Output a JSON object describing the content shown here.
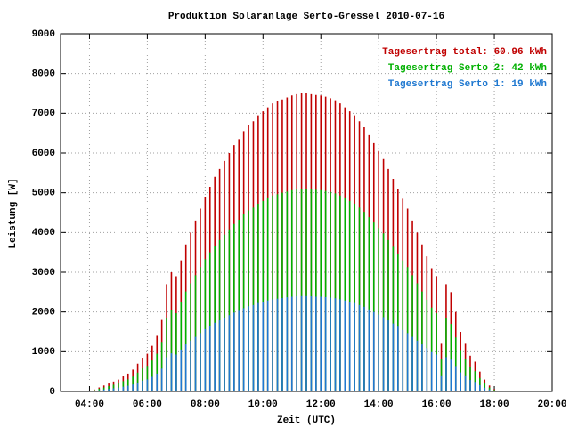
{
  "chart_data": {
    "type": "impulse",
    "title": "Produktion Solaranlage Serto-Gressel 2010-07-16",
    "x_label": "Zeit (UTC)",
    "y_label": "Leistung [W]",
    "x": [
      250,
      260,
      270,
      280,
      290,
      300,
      310,
      320,
      330,
      340,
      350,
      360,
      370,
      380,
      390,
      400,
      410,
      420,
      430,
      440,
      450,
      460,
      470,
      480,
      490,
      500,
      510,
      520,
      530,
      540,
      550,
      560,
      570,
      580,
      590,
      600,
      610,
      620,
      630,
      640,
      650,
      660,
      670,
      680,
      690,
      700,
      710,
      720,
      730,
      740,
      750,
      760,
      770,
      780,
      790,
      800,
      810,
      820,
      830,
      840,
      850,
      860,
      870,
      880,
      890,
      900,
      910,
      920,
      930,
      940,
      950,
      960,
      970,
      980,
      990,
      1000,
      1010,
      1020,
      1030,
      1040,
      1050,
      1060,
      1070,
      1080,
      1090
    ],
    "series": [
      {
        "name": "Tagesertrag total: 60.96 kWh",
        "color": "#c00000",
        "values": [
          50,
          100,
          150,
          200,
          250,
          300,
          380,
          450,
          550,
          700,
          850,
          950,
          1150,
          1400,
          1800,
          2700,
          3000,
          2900,
          3300,
          3700,
          4000,
          4300,
          4600,
          4900,
          5150,
          5400,
          5600,
          5800,
          6000,
          6200,
          6350,
          6550,
          6700,
          6800,
          6950,
          7050,
          7150,
          7250,
          7300,
          7350,
          7400,
          7450,
          7480,
          7500,
          7500,
          7480,
          7460,
          7450,
          7420,
          7380,
          7330,
          7250,
          7150,
          7050,
          6950,
          6800,
          6650,
          6450,
          6250,
          6050,
          5850,
          5600,
          5350,
          5100,
          4850,
          4600,
          4300,
          4000,
          3700,
          3400,
          3100,
          2900,
          1200,
          2700,
          2500,
          2000,
          1500,
          1200,
          900,
          750,
          500,
          300,
          150,
          60,
          20
        ]
      },
      {
        "name": "Tagesertrag Serto 2: 42 kWh",
        "color": "#00b000",
        "values": [
          35,
          70,
          100,
          135,
          170,
          205,
          260,
          305,
          375,
          475,
          580,
          645,
          780,
          950,
          1225,
          1840,
          2040,
          1970,
          2245,
          2515,
          2720,
          2925,
          3130,
          3330,
          3500,
          3670,
          3810,
          3945,
          4080,
          4215,
          4320,
          4455,
          4555,
          4625,
          4725,
          4795,
          4860,
          4930,
          4965,
          5000,
          5030,
          5065,
          5085,
          5100,
          5100,
          5085,
          5075,
          5065,
          5045,
          5020,
          4985,
          4930,
          4860,
          4795,
          4725,
          4625,
          4520,
          4385,
          4250,
          4115,
          3980,
          3810,
          3640,
          3470,
          3300,
          3130,
          2925,
          2720,
          2515,
          2310,
          2110,
          1970,
          815,
          1835,
          1700,
          1360,
          1020,
          815,
          610,
          510,
          340,
          205,
          100,
          40,
          15
        ]
      },
      {
        "name": "Tagesertrag Serto 1: 19 kWh",
        "color": "#1f78d0",
        "values": [
          15,
          30,
          50,
          65,
          80,
          95,
          120,
          145,
          175,
          225,
          270,
          305,
          370,
          450,
          575,
          860,
          960,
          930,
          1055,
          1185,
          1280,
          1375,
          1470,
          1570,
          1650,
          1730,
          1790,
          1855,
          1920,
          1985,
          2030,
          2095,
          2145,
          2175,
          2225,
          2255,
          2290,
          2320,
          2335,
          2350,
          2370,
          2385,
          2395,
          2400,
          2400,
          2395,
          2385,
          2385,
          2375,
          2360,
          2345,
          2320,
          2290,
          2255,
          2225,
          2175,
          2130,
          2065,
          2000,
          1935,
          1870,
          1790,
          1710,
          1630,
          1550,
          1470,
          1375,
          1280,
          1185,
          1090,
          990,
          930,
          385,
          865,
          800,
          640,
          480,
          385,
          290,
          240,
          160,
          95,
          50,
          20,
          5
        ]
      }
    ],
    "xlim": [
      180,
      1200
    ],
    "xticks": [
      {
        "value": 240,
        "label": "04:00"
      },
      {
        "value": 360,
        "label": "06:00"
      },
      {
        "value": 480,
        "label": "08:00"
      },
      {
        "value": 600,
        "label": "10:00"
      },
      {
        "value": 720,
        "label": "12:00"
      },
      {
        "value": 840,
        "label": "14:00"
      },
      {
        "value": 960,
        "label": "16:00"
      },
      {
        "value": 1080,
        "label": "18:00"
      },
      {
        "value": 1200,
        "label": "20:00"
      }
    ],
    "ylim": [
      0,
      9000
    ],
    "yticks": [
      0,
      1000,
      2000,
      3000,
      4000,
      5000,
      6000,
      7000,
      8000,
      9000
    ],
    "grid": true,
    "legend": "top-right"
  }
}
